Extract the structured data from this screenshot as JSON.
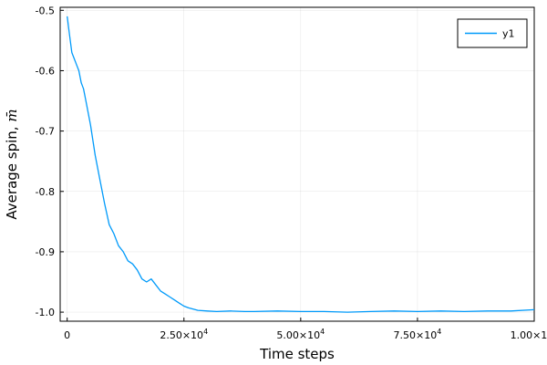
{
  "chart_data": {
    "type": "line",
    "xlabel": "Time steps",
    "ylabel": "Average spin, ",
    "ylabel_symbol": "m̄",
    "xlim": [
      -1500,
      100000
    ],
    "ylim": [
      -1.015,
      -0.495
    ],
    "grid": true,
    "legend_position": "top-right",
    "x_ticks": [
      {
        "value": 0,
        "mantissa": "0",
        "exp": ""
      },
      {
        "value": 25000,
        "mantissa": "2.50×10",
        "exp": "4"
      },
      {
        "value": 50000,
        "mantissa": "5.00×10",
        "exp": "4"
      },
      {
        "value": 75000,
        "mantissa": "7.50×10",
        "exp": "4"
      },
      {
        "value": 100000,
        "mantissa": "1.00×10",
        "exp": "5"
      }
    ],
    "y_ticks": [
      {
        "value": -0.5,
        "label": "-0.5"
      },
      {
        "value": -0.6,
        "label": "-0.6"
      },
      {
        "value": -0.7,
        "label": "-0.7"
      },
      {
        "value": -0.8,
        "label": "-0.8"
      },
      {
        "value": -0.9,
        "label": "-0.9"
      },
      {
        "value": -1.0,
        "label": "-1.0"
      }
    ],
    "series": [
      {
        "name": "y1",
        "color": "#009AFA",
        "x": [
          0,
          500,
          1000,
          1500,
          2000,
          2500,
          3000,
          3500,
          4000,
          5000,
          6000,
          7000,
          8000,
          9000,
          10000,
          11000,
          12000,
          13000,
          14000,
          15000,
          16000,
          17000,
          18000,
          19000,
          20000,
          21000,
          22000,
          23000,
          24000,
          25000,
          26000,
          27000,
          28000,
          30000,
          32000,
          35000,
          38000,
          40000,
          45000,
          50000,
          55000,
          60000,
          65000,
          70000,
          75000,
          80000,
          85000,
          90000,
          95000,
          100000
        ],
        "y": [
          -0.51,
          -0.54,
          -0.57,
          -0.58,
          -0.59,
          -0.6,
          -0.62,
          -0.63,
          -0.65,
          -0.69,
          -0.74,
          -0.78,
          -0.82,
          -0.855,
          -0.87,
          -0.89,
          -0.9,
          -0.915,
          -0.92,
          -0.93,
          -0.945,
          -0.95,
          -0.945,
          -0.955,
          -0.965,
          -0.97,
          -0.975,
          -0.98,
          -0.985,
          -0.99,
          -0.993,
          -0.995,
          -0.997,
          -0.998,
          -0.999,
          -0.998,
          -0.999,
          -0.999,
          -0.998,
          -0.999,
          -0.999,
          -1.0,
          -0.999,
          -0.998,
          -0.999,
          -0.998,
          -0.999,
          -0.998,
          -0.998,
          -0.996
        ]
      }
    ]
  }
}
